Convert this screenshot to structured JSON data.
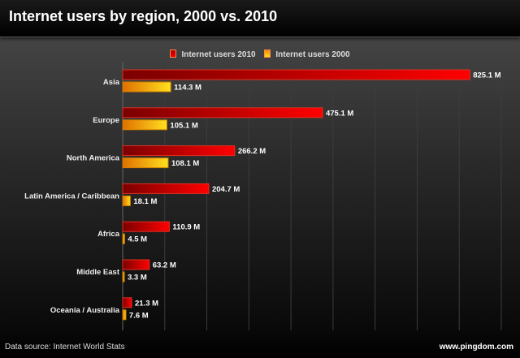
{
  "title": "Internet users by region, 2000 vs. 2010",
  "footer": {
    "source": "Data source: Internet World Stats",
    "url": "www.pingdom.com"
  },
  "chart_data": {
    "type": "bar",
    "orientation": "horizontal",
    "title": "Internet users by region, 2000 vs. 2010",
    "categories": [
      "Asia",
      "Europe",
      "North America",
      "Latin America / Caribbean",
      "Africa",
      "Middle East",
      "Oceania / Australia"
    ],
    "series": [
      {
        "name": "Internet users 2010",
        "values": [
          825.1,
          475.1,
          266.2,
          204.7,
          110.9,
          63.2,
          21.3
        ],
        "labels": [
          "825.1 M",
          "475.1 M",
          "266.2 M",
          "204.7 M",
          "110.9 M",
          "63.2 M",
          "21.3 M"
        ],
        "color": "#e00000"
      },
      {
        "name": "Internet users 2000",
        "values": [
          114.3,
          105.1,
          108.1,
          18.1,
          4.5,
          3.3,
          7.6
        ],
        "labels": [
          "114.3 M",
          "105.1 M",
          "108.1 M",
          "18.1 M",
          "4.5 M",
          "3.3 M",
          "7.6 M"
        ],
        "color": "#f5b000"
      }
    ],
    "xlim": [
      0,
      900
    ],
    "grid": true,
    "legend": "top-center"
  }
}
